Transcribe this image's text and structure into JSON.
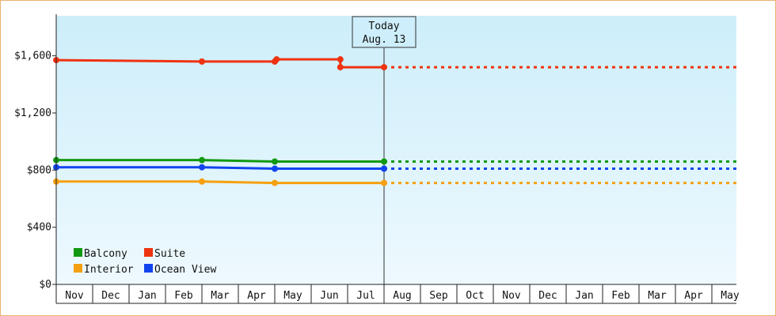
{
  "chart_data": {
    "type": "line",
    "title": "",
    "xlabel": "",
    "ylabel": "",
    "categories": [
      "Nov",
      "Dec",
      "Jan",
      "Feb",
      "Mar",
      "Apr",
      "May",
      "Jun",
      "Jul",
      "Aug",
      "Sep",
      "Oct",
      "Nov",
      "Dec",
      "Jan",
      "Feb",
      "Mar",
      "Apr",
      "May"
    ],
    "ylim": [
      0,
      1880
    ],
    "yticks": [
      0,
      400,
      800,
      1200,
      1600
    ],
    "ytick_labels": [
      "$0",
      "$400",
      "$800",
      "$1,200",
      "$1,600"
    ],
    "grid": false,
    "legend_position": "bottom-left",
    "today_index": 9,
    "today_label": [
      "Today",
      "Aug. 13"
    ],
    "series": [
      {
        "name": "Balcony",
        "color": "#119911",
        "points": [
          {
            "x": 0.0,
            "y": 870
          },
          {
            "x": 4.0,
            "y": 870
          },
          {
            "x": 6.0,
            "y": 860
          },
          {
            "x": 9.0,
            "y": 860
          }
        ],
        "projection": [
          {
            "x": 9.0,
            "y": 860
          },
          {
            "x": 18.75,
            "y": 860
          }
        ]
      },
      {
        "name": "Suite",
        "color": "#ee3311",
        "points": [
          {
            "x": 0.0,
            "y": 1570
          },
          {
            "x": 4.0,
            "y": 1560
          },
          {
            "x": 6.0,
            "y": 1560
          },
          {
            "x": 6.05,
            "y": 1575
          },
          {
            "x": 7.8,
            "y": 1575
          },
          {
            "x": 7.8,
            "y": 1520
          },
          {
            "x": 9.0,
            "y": 1520
          }
        ],
        "projection": [
          {
            "x": 9.0,
            "y": 1520
          },
          {
            "x": 18.75,
            "y": 1520
          }
        ]
      },
      {
        "name": "Interior",
        "color": "#f5a010",
        "points": [
          {
            "x": 0.0,
            "y": 720
          },
          {
            "x": 4.0,
            "y": 720
          },
          {
            "x": 6.0,
            "y": 710
          },
          {
            "x": 9.0,
            "y": 710
          }
        ],
        "projection": [
          {
            "x": 9.0,
            "y": 710
          },
          {
            "x": 18.75,
            "y": 710
          }
        ]
      },
      {
        "name": "Ocean View",
        "color": "#1144ee",
        "points": [
          {
            "x": 0.0,
            "y": 820
          },
          {
            "x": 4.0,
            "y": 820
          },
          {
            "x": 6.0,
            "y": 810
          },
          {
            "x": 9.0,
            "y": 810
          }
        ],
        "projection": [
          {
            "x": 9.0,
            "y": 810
          },
          {
            "x": 18.75,
            "y": 810
          }
        ]
      }
    ],
    "legend_order": [
      "Balcony",
      "Suite",
      "Interior",
      "Ocean View"
    ]
  }
}
